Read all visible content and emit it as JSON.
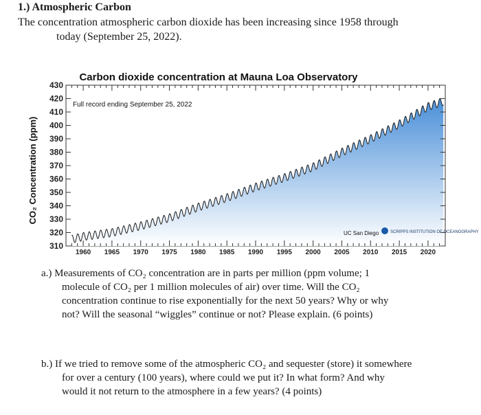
{
  "heading": "1.) Atmospheric Carbon",
  "intro": {
    "line1": "The concentration atmospheric carbon dioxide has been increasing since 1958 through",
    "line2": "today (September 25, 2022)."
  },
  "chart_data": {
    "type": "line",
    "title": "Carbon dioxide concentration at Mauna Loa Observatory",
    "annotation": "Full record ending September 25, 2022",
    "ylabel": "CO₂ Concentration (ppm)",
    "xlabel": "",
    "xlim": [
      1957,
      2023
    ],
    "ylim": [
      310,
      430
    ],
    "y_ticks": [
      310,
      320,
      330,
      340,
      350,
      360,
      370,
      380,
      390,
      400,
      410,
      420,
      430
    ],
    "x_ticks": [
      1960,
      1965,
      1970,
      1975,
      1980,
      1985,
      1990,
      1995,
      2000,
      2005,
      2010,
      2015,
      2020
    ],
    "series": [
      {
        "x": [
          1958,
          1960,
          1965,
          1970,
          1975,
          1980,
          1985,
          1990,
          1995,
          2000,
          2005,
          2010,
          2015,
          2020,
          2022.7
        ],
        "y": [
          315,
          317,
          320,
          325,
          331,
          339,
          346,
          354,
          361,
          369,
          380,
          390,
          401,
          414,
          418
        ]
      }
    ],
    "seasonal_amplitude_ppm": 6,
    "grid": false,
    "line_color": "#1a1a1a",
    "fill_top_color": "#4a8fd8",
    "fill_bottom_color": "#ffffff"
  },
  "logos": {
    "ucsd": "UC San Diego",
    "scripps": "SCRIPPS INSTITUTION OF OCEANOGRAPHY"
  },
  "question_a": {
    "label": "a.)",
    "line1": "Measurements of CO₂ concentration are in parts per million (ppm volume; 1",
    "line2": "molecule of CO₂ per 1 million molecules of air) over time.  Will the CO₂",
    "line3": "concentration continue to rise exponentially for the next 50 years? Why or why",
    "line4": "not? Will the seasonal “wiggles” continue or not? Please explain. (6 points)"
  },
  "question_b": {
    "label": "b.)",
    "line1": "If we tried to remove some of the atmospheric CO₂ and sequester (store) it somewhere",
    "line2": "for over a century (100 years), where could we put it? In what form? And why",
    "line3": "would it not return to the atmosphere in a few years? (4 points)"
  }
}
